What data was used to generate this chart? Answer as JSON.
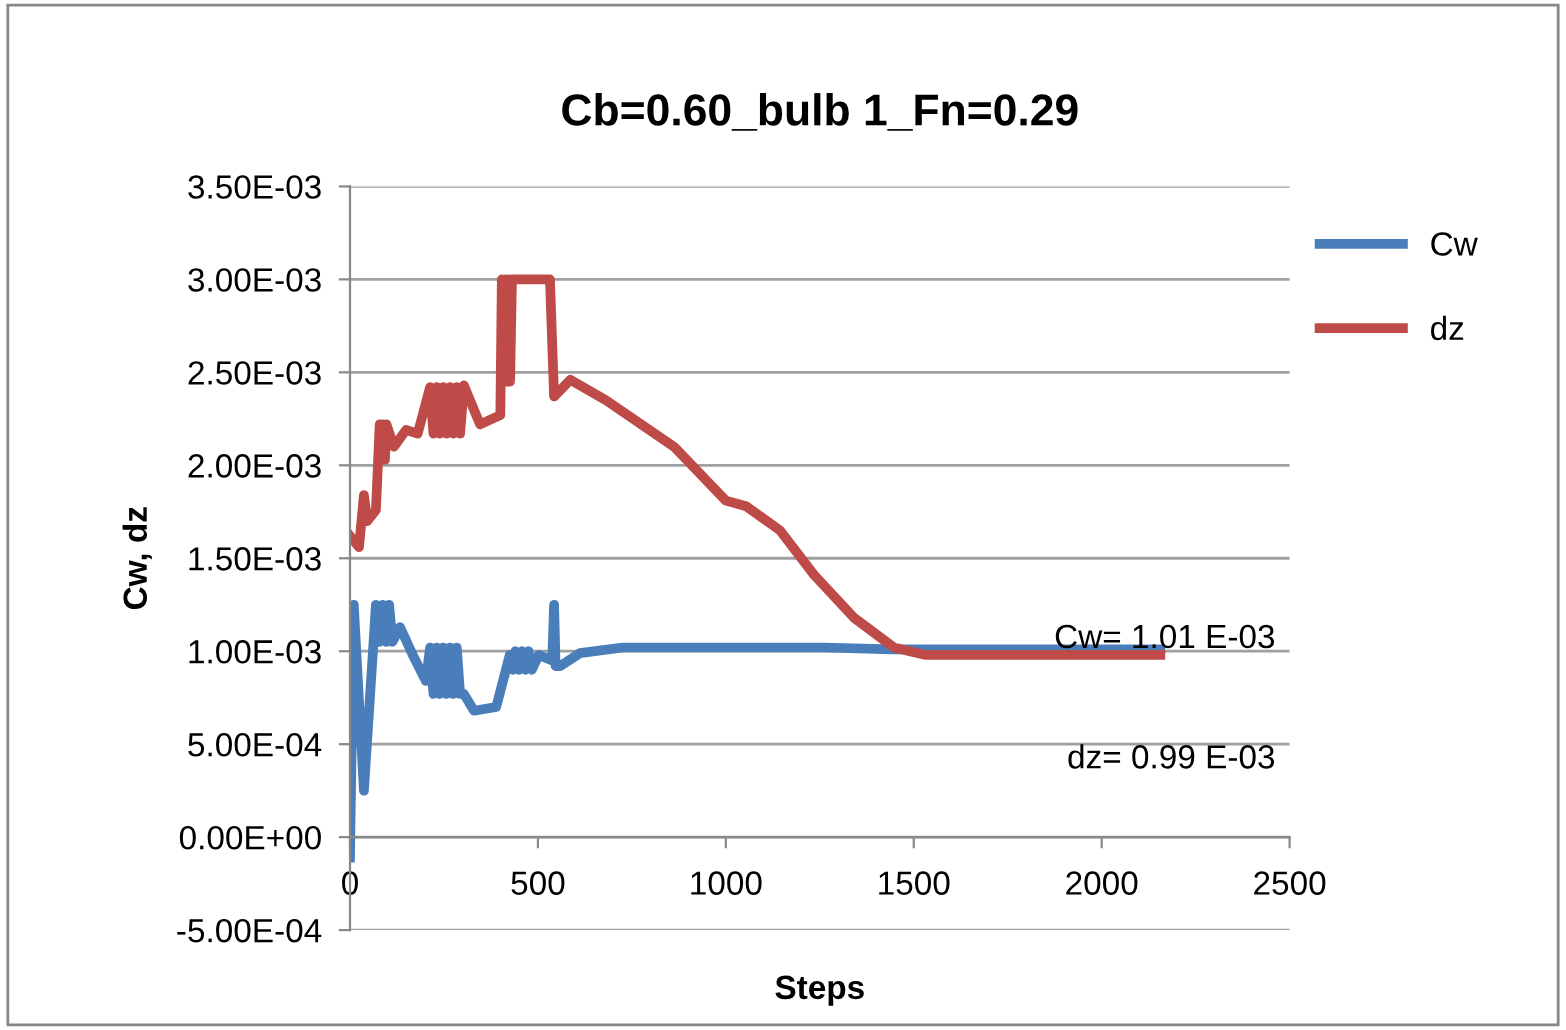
{
  "chart_data": {
    "type": "line",
    "title": "Cb=0.60_bulb 1_Fn=0.29",
    "xlabel": "Steps",
    "ylabel": "Cw, dz",
    "xlim": [
      0,
      2500
    ],
    "xticks": [
      0,
      500,
      1000,
      1500,
      2000,
      2500
    ],
    "ylim": [
      -0.0005,
      0.0035
    ],
    "yticks": [
      {
        "value": -0.0005,
        "label": "-5.00E-04"
      },
      {
        "value": 0,
        "label": "0.00E+00"
      },
      {
        "value": 0.0005,
        "label": "5.00E-04"
      },
      {
        "value": 0.001,
        "label": "1.00E-03"
      },
      {
        "value": 0.0015,
        "label": "1.50E-03"
      },
      {
        "value": 0.002,
        "label": "2.00E-03"
      },
      {
        "value": 0.0025,
        "label": "2.50E-03"
      },
      {
        "value": 0.003,
        "label": "3.00E-03"
      },
      {
        "value": 0.0035,
        "label": "3.50E-03"
      }
    ],
    "grid": "y",
    "legend": "right",
    "marker": "none",
    "line_style": "solid",
    "annotations": [
      "Cw= 1.01 E-03",
      "dz= 0.99 E-03"
    ],
    "series": [
      {
        "name": "Cw",
        "color": "#4a7ebb",
        "x": [
          0,
          10,
          37,
          69,
          78,
          87,
          96,
          104,
          113,
          133,
          167,
          202,
          213,
          222,
          231,
          239,
          248,
          257,
          266,
          275,
          284,
          293,
          303,
          330,
          389,
          425,
          433,
          440,
          449,
          458,
          467,
          475,
          484,
          502,
          538,
          543,
          547,
          559,
          612,
          726,
          905,
          1083,
          1262,
          1441,
          1620,
          1799,
          1977,
          2156
        ],
        "values": [
          -0.00011,
          0.00125,
          0.00025,
          0.00125,
          0.00105,
          0.00125,
          0.00105,
          0.00125,
          0.00105,
          0.00113,
          0.00098,
          0.00084,
          0.00102,
          0.00077,
          0.00102,
          0.00077,
          0.00102,
          0.00077,
          0.00102,
          0.00077,
          0.00102,
          0.00077,
          0.00077,
          0.00068,
          0.0007,
          0.00098,
          0.0009,
          0.001,
          0.0009,
          0.001,
          0.0009,
          0.001,
          0.0009,
          0.00098,
          0.00095,
          0.00125,
          0.00092,
          0.00092,
          0.00099,
          0.00102,
          0.00102,
          0.00102,
          0.00102,
          0.00101,
          0.00101,
          0.00101,
          0.00101,
          0.00101
        ]
      },
      {
        "name": "dz",
        "color": "#be4b48",
        "x": [
          0,
          24,
          37,
          46,
          69,
          79,
          84,
          88,
          93,
          97,
          117,
          149,
          180,
          213,
          222,
          231,
          239,
          248,
          257,
          266,
          275,
          284,
          293,
          303,
          346,
          400,
          404,
          408,
          413,
          417,
          422,
          426,
          431,
          532,
          543,
          586,
          681,
          862,
          1000,
          1054,
          1144,
          1235,
          1341,
          1447,
          1532,
          1709,
          1888,
          2067,
          2156
        ],
        "values": [
          0.00162,
          0.00156,
          0.00184,
          0.0017,
          0.00176,
          0.00222,
          0.00203,
          0.00222,
          0.00203,
          0.00222,
          0.0021,
          0.00219,
          0.00217,
          0.00242,
          0.00217,
          0.00242,
          0.00217,
          0.00242,
          0.00217,
          0.00242,
          0.00217,
          0.00242,
          0.00217,
          0.00243,
          0.00222,
          0.00227,
          0.003,
          0.00245,
          0.003,
          0.00245,
          0.003,
          0.00245,
          0.003,
          0.003,
          0.00237,
          0.00246,
          0.00235,
          0.0021,
          0.00181,
          0.00178,
          0.00165,
          0.00141,
          0.00118,
          0.00102,
          0.00098,
          0.00098,
          0.00098,
          0.00098,
          0.00098
        ]
      }
    ]
  }
}
